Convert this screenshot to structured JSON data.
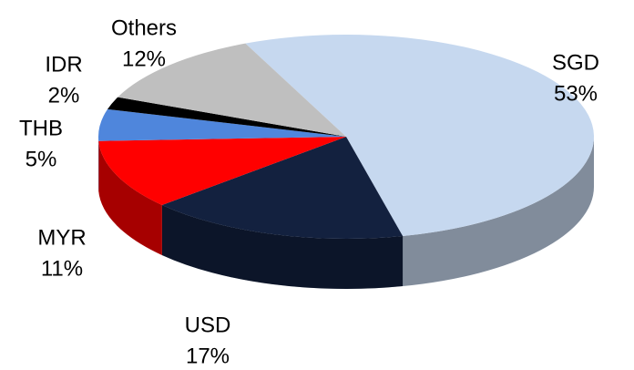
{
  "chart_data": {
    "type": "pie",
    "categories": [
      "SGD",
      "USD",
      "MYR",
      "THB",
      "IDR",
      "Others"
    ],
    "values": [
      53,
      17,
      11,
      5,
      2,
      12
    ],
    "value_labels": [
      "53%",
      "17%",
      "11%",
      "5%",
      "2%",
      "12%"
    ],
    "colors": [
      "#c6d8ef",
      "#13213f",
      "#ff0000",
      "#4f86dc",
      "#000000",
      "#bfbfbf"
    ]
  }
}
